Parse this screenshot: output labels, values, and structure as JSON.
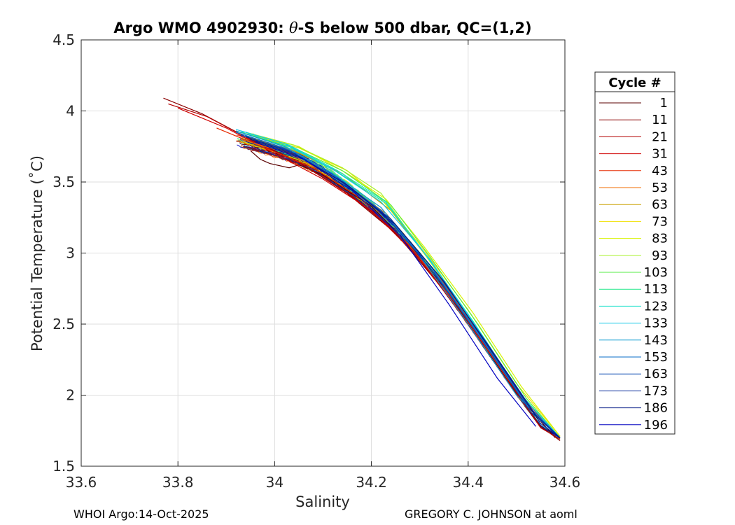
{
  "chart_data": {
    "type": "line",
    "title": {
      "prefix": "Argo WMO 4902930: ",
      "symbol": "θ",
      "suffix": "-S below 500 dbar,  QC=(1,2)"
    },
    "xlabel": "Salinity",
    "ylabel": "Potential Temperature (˚C)",
    "xlim": [
      33.6,
      34.6
    ],
    "ylim": [
      1.5,
      4.5
    ],
    "xticks": [
      "33.6",
      "33.8",
      "34",
      "34.2",
      "34.4",
      "34.6"
    ],
    "yticks": [
      "1.5",
      "2",
      "2.5",
      "3",
      "3.5",
      "4",
      "4.5"
    ],
    "grid": true,
    "legend": {
      "title": "Cycle #",
      "placement": "outside-right",
      "entries": [
        {
          "label": "1",
          "color": "#5a0000"
        },
        {
          "label": "11",
          "color": "#8b0000"
        },
        {
          "label": "21",
          "color": "#b30000"
        },
        {
          "label": "31",
          "color": "#d10000"
        },
        {
          "label": "43",
          "color": "#e62a00"
        },
        {
          "label": "53",
          "color": "#f26b00"
        },
        {
          "label": "63",
          "color": "#c9a000"
        },
        {
          "label": "73",
          "color": "#f0e000"
        },
        {
          "label": "83",
          "color": "#d8f200"
        },
        {
          "label": "93",
          "color": "#a8f02a"
        },
        {
          "label": "103",
          "color": "#55ee44"
        },
        {
          "label": "113",
          "color": "#22e88a"
        },
        {
          "label": "123",
          "color": "#14e0c8"
        },
        {
          "label": "133",
          "color": "#10c8e8"
        },
        {
          "label": "143",
          "color": "#0c9ad0"
        },
        {
          "label": "153",
          "color": "#0a6ec8"
        },
        {
          "label": "163",
          "color": "#0848b0"
        },
        {
          "label": "173",
          "color": "#06289a"
        },
        {
          "label": "186",
          "color": "#041a86"
        },
        {
          "label": "196",
          "color": "#0000c0"
        }
      ]
    },
    "reference_curve": [
      [
        33.9,
        3.82
      ],
      [
        33.95,
        3.77
      ],
      [
        34.0,
        3.72
      ],
      [
        34.05,
        3.66
      ],
      [
        34.1,
        3.57
      ],
      [
        34.15,
        3.45
      ],
      [
        34.2,
        3.32
      ],
      [
        34.25,
        3.16
      ],
      [
        34.3,
        2.97
      ],
      [
        34.35,
        2.75
      ],
      [
        34.4,
        2.51
      ],
      [
        34.45,
        2.26
      ],
      [
        34.5,
        2.01
      ],
      [
        34.55,
        1.78
      ],
      [
        34.59,
        1.7
      ]
    ],
    "series": [
      {
        "name": "1",
        "points": [
          [
            33.95,
            3.72
          ],
          [
            33.97,
            3.66
          ],
          [
            33.99,
            3.63
          ],
          [
            34.03,
            3.6
          ],
          [
            34.05,
            3.62
          ],
          [
            34.1,
            3.55
          ],
          [
            34.2,
            3.33
          ],
          [
            34.3,
            2.98
          ],
          [
            34.4,
            2.52
          ],
          [
            34.5,
            2.01
          ],
          [
            34.58,
            1.7
          ]
        ]
      },
      {
        "name": "11",
        "points": [
          [
            33.77,
            4.09
          ],
          [
            33.85,
            3.98
          ],
          [
            33.95,
            3.8
          ],
          [
            34.05,
            3.64
          ],
          [
            34.15,
            3.42
          ],
          [
            34.25,
            3.14
          ],
          [
            34.35,
            2.74
          ],
          [
            34.45,
            2.25
          ],
          [
            34.55,
            1.78
          ],
          [
            34.59,
            1.68
          ]
        ]
      },
      {
        "name": "21",
        "points": [
          [
            33.78,
            4.05
          ],
          [
            33.86,
            3.96
          ],
          [
            33.96,
            3.78
          ],
          [
            34.06,
            3.62
          ],
          [
            34.16,
            3.4
          ],
          [
            34.26,
            3.12
          ],
          [
            34.36,
            2.7
          ],
          [
            34.46,
            2.22
          ],
          [
            34.55,
            1.77
          ],
          [
            34.59,
            1.69
          ]
        ]
      },
      {
        "name": "31",
        "points": [
          [
            33.8,
            4.02
          ],
          [
            33.9,
            3.88
          ],
          [
            34.0,
            3.7
          ],
          [
            34.1,
            3.52
          ],
          [
            34.2,
            3.3
          ],
          [
            34.3,
            2.96
          ],
          [
            34.4,
            2.5
          ],
          [
            34.5,
            2.0
          ],
          [
            34.59,
            1.7
          ]
        ]
      },
      {
        "name": "43",
        "points": [
          [
            33.88,
            3.88
          ],
          [
            33.98,
            3.74
          ],
          [
            34.08,
            3.6
          ],
          [
            34.18,
            3.38
          ],
          [
            34.28,
            3.05
          ],
          [
            34.38,
            2.62
          ],
          [
            34.48,
            2.12
          ],
          [
            34.58,
            1.72
          ]
        ]
      },
      {
        "name": "53",
        "points": [
          [
            33.93,
            3.8
          ],
          [
            34.03,
            3.7
          ],
          [
            34.13,
            3.52
          ],
          [
            34.23,
            3.28
          ],
          [
            34.33,
            2.88
          ],
          [
            34.43,
            2.4
          ],
          [
            34.53,
            1.9
          ],
          [
            34.59,
            1.7
          ]
        ]
      },
      {
        "name": "63",
        "points": [
          [
            33.94,
            3.82
          ],
          [
            34.04,
            3.72
          ],
          [
            34.14,
            3.56
          ],
          [
            34.24,
            3.3
          ],
          [
            34.34,
            2.86
          ],
          [
            34.44,
            2.36
          ],
          [
            34.54,
            1.86
          ],
          [
            34.59,
            1.7
          ]
        ]
      },
      {
        "name": "73",
        "points": [
          [
            33.95,
            3.83
          ],
          [
            34.05,
            3.74
          ],
          [
            34.15,
            3.58
          ],
          [
            34.22,
            3.38
          ],
          [
            34.3,
            3.06
          ],
          [
            34.4,
            2.6
          ],
          [
            34.5,
            2.08
          ],
          [
            34.59,
            1.71
          ]
        ]
      },
      {
        "name": "83",
        "points": [
          [
            33.95,
            3.84
          ],
          [
            34.05,
            3.75
          ],
          [
            34.15,
            3.56
          ],
          [
            34.23,
            3.38
          ],
          [
            34.31,
            3.04
          ],
          [
            34.41,
            2.58
          ],
          [
            34.51,
            2.06
          ],
          [
            34.59,
            1.71
          ]
        ]
      },
      {
        "name": "93",
        "points": [
          [
            33.94,
            3.85
          ],
          [
            34.04,
            3.76
          ],
          [
            34.14,
            3.6
          ],
          [
            34.22,
            3.42
          ],
          [
            34.3,
            3.04
          ],
          [
            34.4,
            2.56
          ],
          [
            34.5,
            2.04
          ],
          [
            34.59,
            1.7
          ]
        ]
      },
      {
        "name": "103",
        "points": [
          [
            33.94,
            3.84
          ],
          [
            34.04,
            3.74
          ],
          [
            34.14,
            3.58
          ],
          [
            34.24,
            3.34
          ],
          [
            34.32,
            2.98
          ],
          [
            34.42,
            2.5
          ],
          [
            34.52,
            1.98
          ],
          [
            34.59,
            1.7
          ]
        ]
      },
      {
        "name": "113",
        "points": [
          [
            33.93,
            3.85
          ],
          [
            34.03,
            3.75
          ],
          [
            34.13,
            3.57
          ],
          [
            34.23,
            3.35
          ],
          [
            34.31,
            3.0
          ],
          [
            34.41,
            2.52
          ],
          [
            34.51,
            2.0
          ],
          [
            34.59,
            1.7
          ]
        ]
      },
      {
        "name": "123",
        "points": [
          [
            33.93,
            3.86
          ],
          [
            34.03,
            3.76
          ],
          [
            34.13,
            3.58
          ],
          [
            34.23,
            3.36
          ],
          [
            34.31,
            3.0
          ],
          [
            34.41,
            2.52
          ],
          [
            34.51,
            2.0
          ],
          [
            34.59,
            1.7
          ]
        ]
      },
      {
        "name": "133",
        "points": [
          [
            33.92,
            3.87
          ],
          [
            34.02,
            3.77
          ],
          [
            34.12,
            3.59
          ],
          [
            34.22,
            3.36
          ],
          [
            34.32,
            2.96
          ],
          [
            34.42,
            2.46
          ],
          [
            34.52,
            1.96
          ],
          [
            34.59,
            1.7
          ]
        ]
      },
      {
        "name": "143",
        "points": [
          [
            33.92,
            3.86
          ],
          [
            34.02,
            3.75
          ],
          [
            34.12,
            3.56
          ],
          [
            34.22,
            3.32
          ],
          [
            34.3,
            2.98
          ],
          [
            34.4,
            2.5
          ],
          [
            34.5,
            2.0
          ],
          [
            34.59,
            1.7
          ]
        ]
      },
      {
        "name": "153",
        "points": [
          [
            33.92,
            3.85
          ],
          [
            34.02,
            3.74
          ],
          [
            34.12,
            3.55
          ],
          [
            34.22,
            3.3
          ],
          [
            34.32,
            2.92
          ],
          [
            34.42,
            2.44
          ],
          [
            34.52,
            1.94
          ],
          [
            34.59,
            1.7
          ]
        ]
      },
      {
        "name": "163",
        "points": [
          [
            33.93,
            3.83
          ],
          [
            34.03,
            3.72
          ],
          [
            34.13,
            3.52
          ],
          [
            34.23,
            3.26
          ],
          [
            34.33,
            2.86
          ],
          [
            34.43,
            2.38
          ],
          [
            34.53,
            1.88
          ],
          [
            34.59,
            1.7
          ]
        ]
      },
      {
        "name": "173",
        "points": [
          [
            33.94,
            3.82
          ],
          [
            34.04,
            3.7
          ],
          [
            34.14,
            3.5
          ],
          [
            34.24,
            3.24
          ],
          [
            34.34,
            2.84
          ],
          [
            34.44,
            2.36
          ],
          [
            34.54,
            1.86
          ],
          [
            34.59,
            1.7
          ]
        ]
      },
      {
        "name": "186",
        "points": [
          [
            33.95,
            3.8
          ],
          [
            34.05,
            3.68
          ],
          [
            34.15,
            3.48
          ],
          [
            34.25,
            3.2
          ],
          [
            34.35,
            2.8
          ],
          [
            34.45,
            2.3
          ],
          [
            34.55,
            1.8
          ],
          [
            34.59,
            1.7
          ]
        ]
      },
      {
        "name": "196",
        "points": [
          [
            33.96,
            3.78
          ],
          [
            34.06,
            3.66
          ],
          [
            34.16,
            3.44
          ],
          [
            34.26,
            3.12
          ],
          [
            34.36,
            2.64
          ],
          [
            34.46,
            2.12
          ],
          [
            34.54,
            1.78
          ]
        ]
      }
    ]
  },
  "footer": {
    "left": "WHOI Argo:14-Oct-2025",
    "right": "GREGORY C. JOHNSON at aoml"
  }
}
